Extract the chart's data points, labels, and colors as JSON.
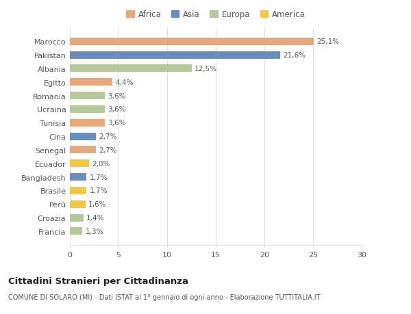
{
  "categories": [
    "Francia",
    "Croazia",
    "Perù",
    "Brasile",
    "Bangladesh",
    "Ecuador",
    "Senegal",
    "Cina",
    "Tunisia",
    "Ucraina",
    "Romania",
    "Egitto",
    "Albania",
    "Pakistan",
    "Marocco"
  ],
  "values": [
    1.3,
    1.4,
    1.6,
    1.7,
    1.7,
    2.0,
    2.7,
    2.7,
    3.6,
    3.6,
    3.6,
    4.4,
    12.5,
    21.6,
    25.1
  ],
  "colors": [
    "#b5c99a",
    "#b5c99a",
    "#f5c842",
    "#f5c842",
    "#6b8cbf",
    "#f5c842",
    "#e8a87c",
    "#6b8cbf",
    "#e8a87c",
    "#b5c99a",
    "#b5c99a",
    "#e8a87c",
    "#b5c99a",
    "#6b8cbf",
    "#e8a87c"
  ],
  "labels": [
    "1,3%",
    "1,4%",
    "1,6%",
    "1,7%",
    "1,7%",
    "2,0%",
    "2,7%",
    "2,7%",
    "3,6%",
    "3,6%",
    "3,6%",
    "4,4%",
    "12,5%",
    "21,6%",
    "25,1%"
  ],
  "legend_labels": [
    "Africa",
    "Asia",
    "Europa",
    "America"
  ],
  "legend_colors": [
    "#e8a87c",
    "#6b8cbf",
    "#b5c99a",
    "#f5c842"
  ],
  "title": "Cittadini Stranieri per Cittadinanza",
  "subtitle": "COMUNE DI SOLARO (MI) - Dati ISTAT al 1° gennaio di ogni anno - Elaborazione TUTTITALIA.IT",
  "xlim": [
    0,
    30
  ],
  "xticks": [
    0,
    5,
    10,
    15,
    20,
    25,
    30
  ],
  "background_color": "#ffffff",
  "grid_color": "#e0e0e0",
  "bar_height": 0.55
}
